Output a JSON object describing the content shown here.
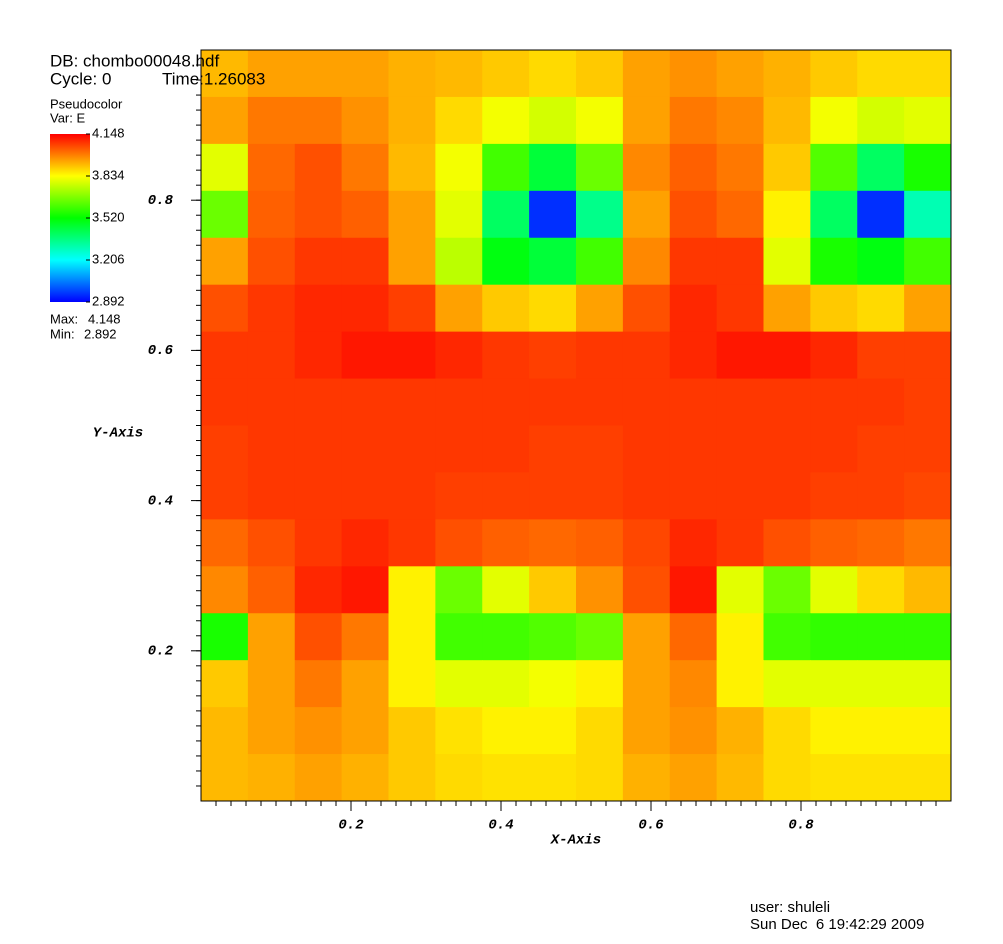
{
  "chart_data": {
    "type": "heatmap",
    "db": "DB: chombo00048.hdf",
    "cycle": "Cycle: 0",
    "time": "Time:1.26083",
    "plot_name": "Pseudocolor",
    "var": "Var: E",
    "max_label": "Max:",
    "max": 4.148,
    "min_label": "Min:",
    "min": 2.892,
    "colormap": [
      "#0000ff",
      "#00ffff",
      "#00ff00",
      "#ffff00",
      "#ff0000"
    ],
    "colorbar_ticks": [
      4.148,
      3.834,
      {
        "value": 3.52,
        "label": "3.520"
      },
      3.206,
      2.892
    ],
    "x_label": "X-Axis",
    "y_label": "Y-Axis",
    "xlim": [
      0,
      1
    ],
    "ylim": [
      0,
      1
    ],
    "xticks": [
      0.2,
      0.4,
      0.6,
      0.8
    ],
    "yticks": [
      0.2,
      0.4,
      0.6,
      0.8
    ],
    "user": "user: shuleli",
    "date": "Sun Dec  6 19:42:29 2009",
    "z": [
      [
        3.92,
        3.95,
        3.95,
        3.95,
        3.93,
        3.92,
        3.9,
        3.88,
        3.9,
        3.95,
        3.97,
        3.95,
        3.93,
        3.9,
        3.88,
        3.88
      ],
      [
        3.95,
        4.0,
        4.0,
        3.97,
        3.93,
        3.88,
        3.82,
        3.78,
        3.82,
        3.95,
        4.0,
        3.98,
        3.92,
        3.82,
        3.78,
        3.8
      ],
      [
        3.8,
        4.02,
        4.05,
        4.0,
        3.92,
        3.82,
        3.6,
        3.45,
        3.65,
        3.98,
        4.03,
        4.0,
        3.9,
        3.62,
        3.4,
        3.55
      ],
      [
        3.65,
        4.03,
        4.05,
        4.03,
        3.95,
        3.8,
        3.4,
        2.95,
        3.35,
        3.95,
        4.05,
        4.02,
        3.85,
        3.4,
        2.95,
        3.3
      ],
      [
        3.95,
        4.05,
        4.08,
        4.08,
        3.95,
        3.75,
        3.5,
        3.45,
        3.6,
        3.98,
        4.08,
        4.08,
        3.8,
        3.55,
        3.5,
        3.6
      ],
      [
        4.05,
        4.08,
        4.1,
        4.1,
        4.07,
        3.95,
        3.9,
        3.88,
        3.95,
        4.05,
        4.1,
        4.08,
        3.95,
        3.9,
        3.88,
        3.95
      ],
      [
        4.08,
        4.08,
        4.1,
        4.12,
        4.12,
        4.1,
        4.08,
        4.07,
        4.08,
        4.08,
        4.1,
        4.12,
        4.12,
        4.1,
        4.07,
        4.07
      ],
      [
        4.08,
        4.08,
        4.08,
        4.08,
        4.08,
        4.08,
        4.08,
        4.08,
        4.08,
        4.08,
        4.08,
        4.08,
        4.08,
        4.08,
        4.08,
        4.07
      ],
      [
        4.07,
        4.08,
        4.08,
        4.08,
        4.08,
        4.08,
        4.08,
        4.07,
        4.07,
        4.08,
        4.08,
        4.08,
        4.08,
        4.08,
        4.07,
        4.07
      ],
      [
        4.07,
        4.08,
        4.08,
        4.08,
        4.08,
        4.07,
        4.07,
        4.07,
        4.07,
        4.08,
        4.08,
        4.08,
        4.08,
        4.07,
        4.07,
        4.06
      ],
      [
        4.02,
        4.05,
        4.08,
        4.1,
        4.08,
        4.05,
        4.03,
        4.02,
        4.03,
        4.06,
        4.1,
        4.08,
        4.05,
        4.03,
        4.02,
        4.0
      ],
      [
        3.98,
        4.03,
        4.1,
        4.12,
        3.85,
        3.65,
        3.8,
        3.9,
        3.97,
        4.05,
        4.12,
        3.8,
        3.65,
        3.8,
        3.88,
        3.92
      ],
      [
        3.55,
        3.95,
        4.05,
        4.0,
        3.85,
        3.6,
        3.6,
        3.62,
        3.65,
        3.95,
        4.02,
        3.85,
        3.6,
        3.58,
        3.58,
        3.58
      ],
      [
        3.9,
        3.95,
        4.0,
        3.95,
        3.85,
        3.8,
        3.8,
        3.82,
        3.85,
        3.95,
        3.98,
        3.85,
        3.8,
        3.8,
        3.8,
        3.8
      ],
      [
        3.92,
        3.95,
        3.97,
        3.95,
        3.9,
        3.87,
        3.85,
        3.85,
        3.88,
        3.95,
        3.97,
        3.93,
        3.88,
        3.85,
        3.85,
        3.85
      ],
      [
        3.92,
        3.93,
        3.95,
        3.93,
        3.9,
        3.88,
        3.87,
        3.87,
        3.88,
        3.93,
        3.95,
        3.92,
        3.88,
        3.87,
        3.87,
        3.87
      ]
    ]
  }
}
